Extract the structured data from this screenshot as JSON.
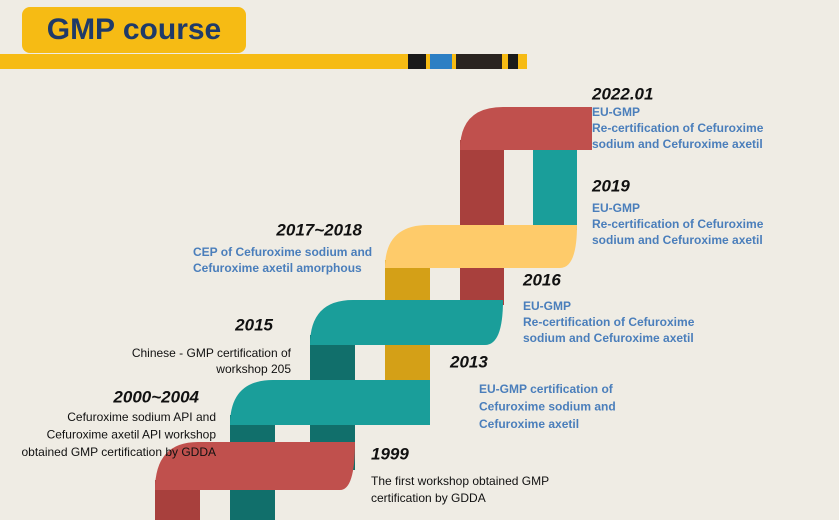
{
  "header": {
    "title": "GMP course"
  },
  "milestones": [
    {
      "year": "2022.01",
      "lines": [
        "EU-GMP",
        "Re-certification of Cefuroxime",
        "sodium and Cefuroxime axetil"
      ]
    },
    {
      "year": "2019",
      "lines": [
        "EU-GMP",
        "Re-certification of Cefuroxime",
        "sodium and Cefuroxime axetil"
      ]
    },
    {
      "year": "2017~2018",
      "lines": [
        "CEP of Cefuroxime sodium and",
        "Cefuroxime axetil amorphous"
      ]
    },
    {
      "year": "2016",
      "lines": [
        "EU-GMP",
        "Re-certification of Cefuroxime",
        "sodium and Cefuroxime axetil"
      ]
    },
    {
      "year": "2015",
      "lines": [
        "Chinese - GMP  certification of",
        "workshop 205"
      ]
    },
    {
      "year": "2013",
      "lines": [
        "EU-GMP certification of",
        "Cefuroxime sodium and",
        "Cefuroxime axetil"
      ]
    },
    {
      "year": "2000~2004",
      "lines": [
        "Cefuroxime sodium API and",
        "Cefuroxime axetil API workshop",
        "obtained GMP certification by GDDA"
      ]
    },
    {
      "year": "1999",
      "lines": [
        "The first workshop obtained GMP",
        "certification by GDDA"
      ]
    }
  ]
}
